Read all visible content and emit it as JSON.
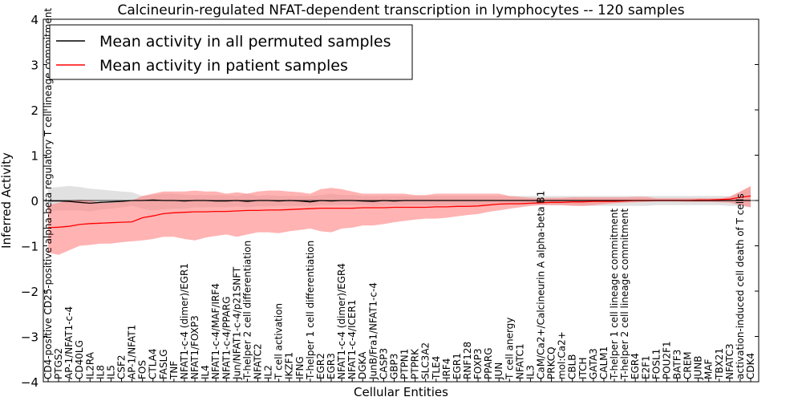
{
  "chart_data": {
    "type": "line",
    "title": "Calcineurin-regulated NFAT-dependent transcription in lymphocytes -- 120 samples",
    "xlabel": "Cellular Entities",
    "ylabel": "Inferred Activity",
    "ylim": [
      -4,
      4
    ],
    "yticks": [
      -4,
      -3,
      -2,
      -1,
      0,
      1,
      2,
      3,
      4
    ],
    "ytick_labels": [
      "−4",
      "−3",
      "−2",
      "−1",
      "0",
      "1",
      "2",
      "3",
      "4"
    ],
    "legend_location": "top-left",
    "categories": [
      "CD4-positive CD25-positive alpha-beta regulatory T cell lineage commitment",
      "PTGS2",
      "AP-1/NFAT1-c-4",
      "CD40LG",
      "IL2RA",
      "IL8",
      "IL5",
      "CSF2",
      "AP-1/NFAT1",
      "FOS",
      "CTLA4",
      "FASLG",
      "TNF",
      "NFAT1-c-4 (dimer)/EGR1",
      "NFAT1/FOXP3",
      "IL4",
      "NFAT1-c-4/MAF/IRF4",
      "NFAT1-c-4/PPARG",
      "Jun/NFAT1-c-4/p21SNFT",
      "T-helper 2 cell differentiation",
      "NFATC2",
      "IL2",
      "T cell activation",
      "IKZF1",
      "IFNG",
      "T-helper 1 cell differentiation",
      "EGR2",
      "EGR3",
      "NFAT1-c-4 (dimer)/EGR4",
      "NFAT1-c-4/ICER1",
      "DGKA",
      "JunB/Fra1/NFAT1-c-4",
      "CASP3",
      "GBP3",
      "PTPN1",
      "PTPRK",
      "SLC3A2",
      "TLE4",
      "IRF4",
      "EGR1",
      "RNF128",
      "FOXP3",
      "PPARG",
      "JUN",
      "T cell anergy",
      "NFATC1",
      "IL3",
      "CaM/Ca2+/Calcineurin A alpha-beta B1",
      "PRKCQ",
      "mol:Ca2+",
      "CBLB",
      "ITCH",
      "GATA3",
      "CALM1",
      "T-helper 1 cell lineage commitment",
      "T-helper 2 cell lineage commitment",
      "EGR4",
      "E2F1",
      "FOSL1",
      "POU2F1",
      "BATF3",
      "CREM",
      "JUNB",
      "MAF",
      "TBX21",
      "NFATC3",
      "activation-induced cell death of T cells",
      "CDK4"
    ],
    "series": [
      {
        "name": "Mean activity in all permuted samples",
        "color": "#000000",
        "values": [
          -0.01,
          -0.01,
          -0.02,
          -0.04,
          -0.06,
          -0.04,
          -0.03,
          -0.02,
          0.0,
          0.0,
          0.01,
          0.0,
          0.0,
          -0.01,
          0.0,
          0.0,
          -0.01,
          -0.01,
          0.0,
          -0.02,
          0.0,
          0.0,
          -0.01,
          0.0,
          -0.01,
          -0.03,
          0.0,
          -0.01,
          0.0,
          0.0,
          -0.01,
          -0.02,
          0.0,
          -0.01,
          0.0,
          0.0,
          0.0,
          0.0,
          0.0,
          0.0,
          0.0,
          0.0,
          0.0,
          0.0,
          0.0,
          0.0,
          0.0,
          0.0,
          0.0,
          0.0,
          0.0,
          0.0,
          0.0,
          0.0,
          0.0,
          0.0,
          0.0,
          0.0,
          0.0,
          0.0,
          0.0,
          0.0,
          0.0,
          0.0,
          0.0,
          0.0,
          0.0,
          0.0
        ]
      },
      {
        "name": "Mean activity in patient samples",
        "color": "#ff0000",
        "values": [
          -0.6,
          -0.59,
          -0.57,
          -0.53,
          -0.51,
          -0.5,
          -0.49,
          -0.48,
          -0.47,
          -0.38,
          -0.34,
          -0.29,
          -0.27,
          -0.26,
          -0.25,
          -0.25,
          -0.24,
          -0.24,
          -0.23,
          -0.22,
          -0.22,
          -0.21,
          -0.21,
          -0.2,
          -0.19,
          -0.18,
          -0.17,
          -0.17,
          -0.17,
          -0.17,
          -0.16,
          -0.16,
          -0.16,
          -0.15,
          -0.15,
          -0.15,
          -0.15,
          -0.14,
          -0.14,
          -0.13,
          -0.13,
          -0.12,
          -0.1,
          -0.08,
          -0.07,
          -0.07,
          -0.06,
          -0.05,
          -0.04,
          -0.04,
          -0.03,
          -0.03,
          -0.02,
          -0.02,
          -0.02,
          -0.01,
          0.0,
          0.0,
          0.0,
          0.0,
          0.0,
          0.0,
          0.01,
          0.01,
          0.02,
          0.03,
          0.07,
          0.1
        ]
      }
    ],
    "bands": [
      {
        "name": "Permuted samples spread",
        "color": "#c8c8c8",
        "lower": [
          -0.25,
          -0.22,
          -0.22,
          -0.22,
          -0.24,
          -0.2,
          -0.18,
          -0.15,
          -0.12,
          -0.18,
          -0.22,
          -0.2,
          -0.18,
          -0.18,
          -0.15,
          -0.15,
          -0.15,
          -0.15,
          -0.13,
          -0.15,
          -0.13,
          -0.13,
          -0.12,
          -0.12,
          -0.12,
          -0.12,
          -0.1,
          -0.1,
          -0.1,
          -0.1,
          -0.1,
          -0.12,
          -0.1,
          -0.1,
          -0.1,
          -0.1,
          -0.1,
          -0.1,
          -0.1,
          -0.1,
          -0.1,
          -0.1,
          -0.1,
          -0.1,
          -0.1,
          -0.1,
          -0.1,
          -0.1,
          -0.1,
          -0.1,
          -0.1,
          -0.12,
          -0.12,
          -0.12,
          -0.12,
          -0.12,
          -0.12,
          -0.12,
          -0.1,
          -0.1,
          -0.1,
          -0.1,
          -0.1,
          -0.1,
          -0.1,
          -0.12,
          -0.12,
          -0.15
        ],
        "upper": [
          0.28,
          0.3,
          0.32,
          0.3,
          0.26,
          0.24,
          0.22,
          0.2,
          0.18,
          0.1,
          0.12,
          0.15,
          0.15,
          0.13,
          0.12,
          0.12,
          0.12,
          0.12,
          0.1,
          0.15,
          0.1,
          0.12,
          0.1,
          0.1,
          0.1,
          0.1,
          0.12,
          0.15,
          0.12,
          0.12,
          0.1,
          0.1,
          0.1,
          0.1,
          0.1,
          0.1,
          0.1,
          0.1,
          0.1,
          0.1,
          0.1,
          0.1,
          0.1,
          0.1,
          0.1,
          0.1,
          0.1,
          0.1,
          0.1,
          0.1,
          0.1,
          0.1,
          0.1,
          0.1,
          0.1,
          0.1,
          0.1,
          0.1,
          0.1,
          0.1,
          0.1,
          0.1,
          0.1,
          0.1,
          0.1,
          0.1,
          0.18,
          0.3
        ]
      },
      {
        "name": "Patient samples spread",
        "color": "#ff8080",
        "lower": [
          -1.15,
          -1.2,
          -1.1,
          -1.0,
          -0.98,
          -0.95,
          -0.95,
          -0.92,
          -0.9,
          -0.88,
          -0.85,
          -0.8,
          -0.8,
          -0.85,
          -0.88,
          -0.82,
          -0.78,
          -0.75,
          -0.8,
          -0.75,
          -0.7,
          -0.7,
          -0.72,
          -0.68,
          -0.65,
          -0.62,
          -0.68,
          -0.7,
          -0.62,
          -0.6,
          -0.55,
          -0.55,
          -0.52,
          -0.48,
          -0.45,
          -0.42,
          -0.4,
          -0.4,
          -0.38,
          -0.35,
          -0.32,
          -0.3,
          -0.25,
          -0.22,
          -0.18,
          -0.15,
          -0.12,
          -0.1,
          -0.1,
          -0.1,
          -0.12,
          -0.12,
          -0.1,
          -0.08,
          -0.06,
          -0.05,
          -0.04,
          -0.03,
          -0.02,
          -0.02,
          -0.02,
          -0.03,
          -0.03,
          -0.03,
          -0.04,
          -0.05,
          -0.1,
          -0.15
        ],
        "upper": [
          -0.1,
          -0.05,
          0.0,
          0.02,
          0.0,
          -0.05,
          -0.05,
          -0.03,
          0.0,
          0.1,
          0.15,
          0.2,
          0.2,
          0.2,
          0.22,
          0.2,
          0.2,
          0.15,
          0.18,
          0.15,
          0.2,
          0.22,
          0.22,
          0.2,
          0.18,
          0.15,
          0.25,
          0.28,
          0.25,
          0.2,
          0.15,
          0.15,
          0.15,
          0.15,
          0.15,
          0.12,
          0.12,
          0.15,
          0.15,
          0.15,
          0.15,
          0.15,
          0.15,
          0.15,
          0.1,
          0.08,
          0.06,
          0.05,
          0.06,
          0.06,
          0.07,
          0.07,
          0.07,
          0.07,
          0.07,
          0.07,
          0.08,
          0.08,
          0.05,
          0.05,
          0.05,
          0.05,
          0.05,
          0.05,
          0.05,
          0.08,
          0.2,
          0.32
        ]
      }
    ]
  }
}
